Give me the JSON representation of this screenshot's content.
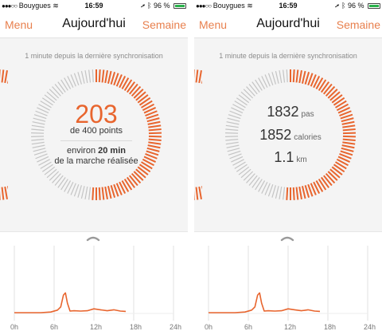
{
  "screens": [
    {
      "status": {
        "carrier": "Bouygues",
        "signal_dots": "●●●○○",
        "time": "16:59",
        "battery": "96 %",
        "battery_level": 0.96
      },
      "nav": {
        "left": "Menu",
        "title": "Aujourd'hui",
        "right": "Semaine"
      },
      "sync": "1 minute depuis la dernière synchronisation",
      "progress": 0.51,
      "content": {
        "points": "203",
        "points_sub": "de 400 points",
        "desc_prefix": "environ ",
        "desc_bold": "20 min",
        "desc_line2": "de la marche réalisée"
      },
      "timeline": {
        "ticks": [
          "0h",
          "6h",
          "12h",
          "18h",
          "24h"
        ]
      }
    },
    {
      "status": {
        "carrier": "Bouygues",
        "signal_dots": "●●●○○",
        "time": "16:59",
        "battery": "96 %",
        "battery_level": 0.96
      },
      "nav": {
        "left": "Menu",
        "title": "Aujourd'hui",
        "right": "Semaine"
      },
      "sync": "1 minute depuis la dernière synchronisation",
      "progress": 0.51,
      "content": {
        "steps_value": "1832",
        "steps_unit": "pas",
        "calories_value": "1852",
        "calories_unit": "calories",
        "distance_value": "1.1",
        "distance_unit": "km"
      },
      "timeline": {
        "ticks": [
          "0h",
          "6h",
          "12h",
          "18h",
          "24h"
        ]
      }
    }
  ],
  "colors": {
    "accent": "#e8652e",
    "nav_text": "#e8804e",
    "ring_inactive": "#c4c4c4"
  }
}
